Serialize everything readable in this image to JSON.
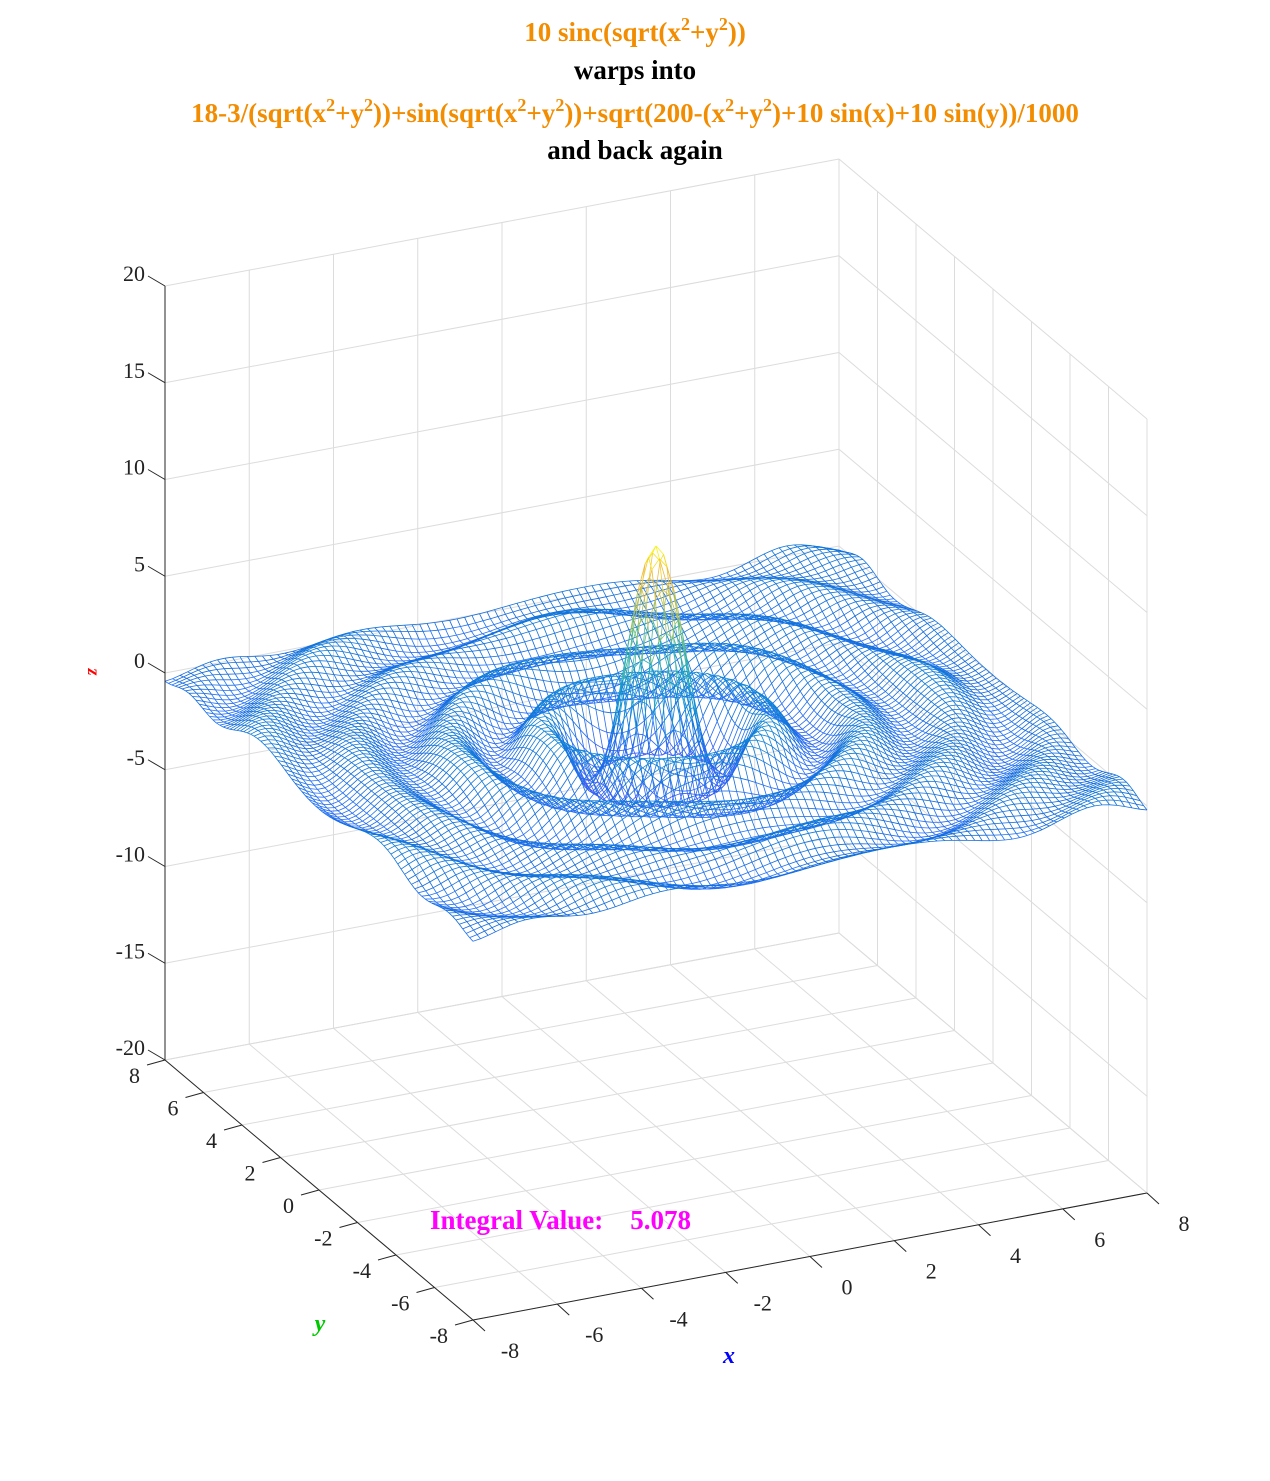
{
  "title": {
    "line1_prefix": "10 sinc(sqrt(x",
    "line1_sup1": "2",
    "line1_mid": "+y",
    "line1_sup2": "2",
    "line1_suffix": "))",
    "line2": "warps into",
    "line3_a": "18-3/(sqrt(x",
    "line3_s1": "2",
    "line3_b": "+y",
    "line3_s2": "2",
    "line3_c": "))+sin(sqrt(x",
    "line3_s3": "2",
    "line3_d": "+y",
    "line3_s4": "2",
    "line3_e": "))+sqrt(200-(x",
    "line3_s5": "2",
    "line3_f": "+y",
    "line3_s6": "2",
    "line3_g": ")+10 sin(x)+10 sin(y))/1000",
    "line4": "and back again"
  },
  "annotation": {
    "label": "Integral Value:",
    "value": "5.078"
  },
  "colors": {
    "title_highlight": "#F28C00",
    "x_label": "#0000FF",
    "y_label": "#00C800",
    "z_label": "#FF0000",
    "annotation": "#FF00FF",
    "grid": "#DCDCDC"
  },
  "chart_data": {
    "type": "surface",
    "style": "mesh",
    "colormap": "parula",
    "xlabel": "x",
    "ylabel": "y",
    "zlabel": "z",
    "xlim": [
      -8,
      8
    ],
    "ylim": [
      -8,
      8
    ],
    "zlim": [
      -20,
      20
    ],
    "x_ticks": [
      "-8",
      "-6",
      "-4",
      "-2",
      "0",
      "2",
      "4",
      "6",
      "8"
    ],
    "y_ticks": [
      "-8",
      "-6",
      "-4",
      "-2",
      "0",
      "2",
      "4",
      "6",
      "8"
    ],
    "z_ticks": [
      "-20",
      "-15",
      "-10",
      "-5",
      "0",
      "5",
      "10",
      "15",
      "20"
    ],
    "function": "10 sinc(sqrt(x^2+y^2))",
    "peak_z": 10,
    "grid": true
  }
}
